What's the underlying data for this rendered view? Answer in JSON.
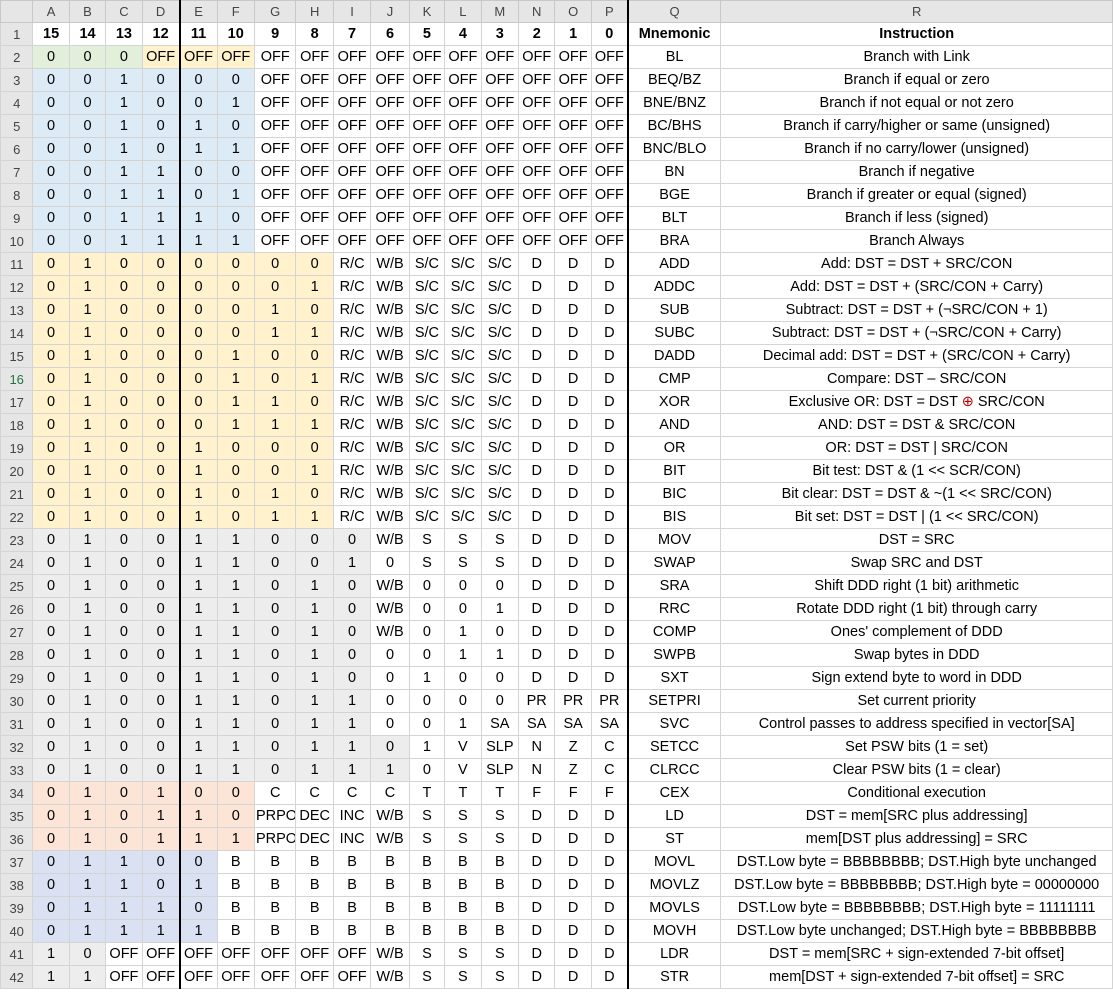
{
  "columns": [
    "A",
    "B",
    "C",
    "D",
    "E",
    "F",
    "G",
    "H",
    "I",
    "J",
    "K",
    "L",
    "M",
    "N",
    "O",
    "P",
    "Q",
    "R"
  ],
  "rows": [
    {
      "n": "1",
      "cells": [
        "15",
        "14",
        "13",
        "12",
        "11",
        "10",
        "9",
        "8",
        "7",
        "6",
        "5",
        "4",
        "3",
        "2",
        "1",
        "0",
        "Mnemonic",
        "Instruction"
      ]
    },
    {
      "n": "2",
      "cells": [
        "0",
        "0",
        "0",
        "OFF",
        "OFF",
        "OFF",
        "OFF",
        "OFF",
        "OFF",
        "OFF",
        "OFF",
        "OFF",
        "OFF",
        "OFF",
        "OFF",
        "OFF",
        "BL",
        "Branch with Link"
      ]
    },
    {
      "n": "3",
      "cells": [
        "0",
        "0",
        "1",
        "0",
        "0",
        "0",
        "OFF",
        "OFF",
        "OFF",
        "OFF",
        "OFF",
        "OFF",
        "OFF",
        "OFF",
        "OFF",
        "OFF",
        "BEQ/BZ",
        "Branch if equal or zero"
      ]
    },
    {
      "n": "4",
      "cells": [
        "0",
        "0",
        "1",
        "0",
        "0",
        "1",
        "OFF",
        "OFF",
        "OFF",
        "OFF",
        "OFF",
        "OFF",
        "OFF",
        "OFF",
        "OFF",
        "OFF",
        "BNE/BNZ",
        "Branch if not equal or not zero"
      ]
    },
    {
      "n": "5",
      "cells": [
        "0",
        "0",
        "1",
        "0",
        "1",
        "0",
        "OFF",
        "OFF",
        "OFF",
        "OFF",
        "OFF",
        "OFF",
        "OFF",
        "OFF",
        "OFF",
        "OFF",
        "BC/BHS",
        "Branch if carry/higher or same (unsigned)"
      ]
    },
    {
      "n": "6",
      "cells": [
        "0",
        "0",
        "1",
        "0",
        "1",
        "1",
        "OFF",
        "OFF",
        "OFF",
        "OFF",
        "OFF",
        "OFF",
        "OFF",
        "OFF",
        "OFF",
        "OFF",
        "BNC/BLO",
        "Branch if no carry/lower (unsigned)"
      ]
    },
    {
      "n": "7",
      "cells": [
        "0",
        "0",
        "1",
        "1",
        "0",
        "0",
        "OFF",
        "OFF",
        "OFF",
        "OFF",
        "OFF",
        "OFF",
        "OFF",
        "OFF",
        "OFF",
        "OFF",
        "BN",
        "Branch if negative"
      ]
    },
    {
      "n": "8",
      "cells": [
        "0",
        "0",
        "1",
        "1",
        "0",
        "1",
        "OFF",
        "OFF",
        "OFF",
        "OFF",
        "OFF",
        "OFF",
        "OFF",
        "OFF",
        "OFF",
        "OFF",
        "BGE",
        "Branch if greater or equal (signed)"
      ]
    },
    {
      "n": "9",
      "cells": [
        "0",
        "0",
        "1",
        "1",
        "1",
        "0",
        "OFF",
        "OFF",
        "OFF",
        "OFF",
        "OFF",
        "OFF",
        "OFF",
        "OFF",
        "OFF",
        "OFF",
        "BLT",
        "Branch if less (signed)"
      ]
    },
    {
      "n": "10",
      "cells": [
        "0",
        "0",
        "1",
        "1",
        "1",
        "1",
        "OFF",
        "OFF",
        "OFF",
        "OFF",
        "OFF",
        "OFF",
        "OFF",
        "OFF",
        "OFF",
        "OFF",
        "BRA",
        "Branch Always"
      ]
    },
    {
      "n": "11",
      "cells": [
        "0",
        "1",
        "0",
        "0",
        "0",
        "0",
        "0",
        "0",
        "R/C",
        "W/B",
        "S/C",
        "S/C",
        "S/C",
        "D",
        "D",
        "D",
        "ADD",
        "Add: DST = DST + SRC/CON"
      ]
    },
    {
      "n": "12",
      "cells": [
        "0",
        "1",
        "0",
        "0",
        "0",
        "0",
        "0",
        "1",
        "R/C",
        "W/B",
        "S/C",
        "S/C",
        "S/C",
        "D",
        "D",
        "D",
        "ADDC",
        "Add: DST = DST + (SRC/CON + Carry)"
      ]
    },
    {
      "n": "13",
      "cells": [
        "0",
        "1",
        "0",
        "0",
        "0",
        "0",
        "1",
        "0",
        "R/C",
        "W/B",
        "S/C",
        "S/C",
        "S/C",
        "D",
        "D",
        "D",
        "SUB",
        "Subtract: DST  = DST + (¬SRC/CON + 1)"
      ]
    },
    {
      "n": "14",
      "cells": [
        "0",
        "1",
        "0",
        "0",
        "0",
        "0",
        "1",
        "1",
        "R/C",
        "W/B",
        "S/C",
        "S/C",
        "S/C",
        "D",
        "D",
        "D",
        "SUBC",
        "Subtract: DST  = DST + (¬SRC/CON + Carry)"
      ]
    },
    {
      "n": "15",
      "cells": [
        "0",
        "1",
        "0",
        "0",
        "0",
        "1",
        "0",
        "0",
        "R/C",
        "W/B",
        "S/C",
        "S/C",
        "S/C",
        "D",
        "D",
        "D",
        "DADD",
        "Decimal add: DST = DST + (SRC/CON + Carry)"
      ]
    },
    {
      "n": "16",
      "cells": [
        "0",
        "1",
        "0",
        "0",
        "0",
        "1",
        "0",
        "1",
        "R/C",
        "W/B",
        "S/C",
        "S/C",
        "S/C",
        "D",
        "D",
        "D",
        "CMP",
        "Compare: DST – SRC/CON"
      ]
    },
    {
      "n": "17",
      "cells": [
        "0",
        "1",
        "0",
        "0",
        "0",
        "1",
        "1",
        "0",
        "R/C",
        "W/B",
        "S/C",
        "S/C",
        "S/C",
        "D",
        "D",
        "D",
        "XOR",
        "Exclusive OR: DST = DST ⊕ SRC/CON"
      ]
    },
    {
      "n": "18",
      "cells": [
        "0",
        "1",
        "0",
        "0",
        "0",
        "1",
        "1",
        "1",
        "R/C",
        "W/B",
        "S/C",
        "S/C",
        "S/C",
        "D",
        "D",
        "D",
        "AND",
        "AND:  DST = DST & SRC/CON"
      ]
    },
    {
      "n": "19",
      "cells": [
        "0",
        "1",
        "0",
        "0",
        "1",
        "0",
        "0",
        "0",
        "R/C",
        "W/B",
        "S/C",
        "S/C",
        "S/C",
        "D",
        "D",
        "D",
        "OR",
        "OR:  DST = DST | SRC/CON"
      ]
    },
    {
      "n": "20",
      "cells": [
        "0",
        "1",
        "0",
        "0",
        "1",
        "0",
        "0",
        "1",
        "R/C",
        "W/B",
        "S/C",
        "S/C",
        "S/C",
        "D",
        "D",
        "D",
        "BIT",
        "Bit test: DST & (1 << SCR/CON)"
      ]
    },
    {
      "n": "21",
      "cells": [
        "0",
        "1",
        "0",
        "0",
        "1",
        "0",
        "1",
        "0",
        "R/C",
        "W/B",
        "S/C",
        "S/C",
        "S/C",
        "D",
        "D",
        "D",
        "BIC",
        "Bit clear: DST = DST & ~(1 << SRC/CON)"
      ]
    },
    {
      "n": "22",
      "cells": [
        "0",
        "1",
        "0",
        "0",
        "1",
        "0",
        "1",
        "1",
        "R/C",
        "W/B",
        "S/C",
        "S/C",
        "S/C",
        "D",
        "D",
        "D",
        "BIS",
        "Bit set: DST = DST | (1 << SRC/CON)"
      ]
    },
    {
      "n": "23",
      "cells": [
        "0",
        "1",
        "0",
        "0",
        "1",
        "1",
        "0",
        "0",
        "0",
        "W/B",
        "S",
        "S",
        "S",
        "D",
        "D",
        "D",
        "MOV",
        "DST = SRC"
      ]
    },
    {
      "n": "24",
      "cells": [
        "0",
        "1",
        "0",
        "0",
        "1",
        "1",
        "0",
        "0",
        "1",
        "0",
        "S",
        "S",
        "S",
        "D",
        "D",
        "D",
        "SWAP",
        "Swap SRC and DST"
      ]
    },
    {
      "n": "25",
      "cells": [
        "0",
        "1",
        "0",
        "0",
        "1",
        "1",
        "0",
        "1",
        "0",
        "W/B",
        "0",
        "0",
        "0",
        "D",
        "D",
        "D",
        "SRA",
        "Shift DDD right (1 bit) arithmetic"
      ]
    },
    {
      "n": "26",
      "cells": [
        "0",
        "1",
        "0",
        "0",
        "1",
        "1",
        "0",
        "1",
        "0",
        "W/B",
        "0",
        "0",
        "1",
        "D",
        "D",
        "D",
        "RRC",
        "Rotate DDD right (1 bit) through carry"
      ]
    },
    {
      "n": "27",
      "cells": [
        "0",
        "1",
        "0",
        "0",
        "1",
        "1",
        "0",
        "1",
        "0",
        "W/B",
        "0",
        "1",
        "0",
        "D",
        "D",
        "D",
        "COMP",
        "Ones' complement of DDD"
      ]
    },
    {
      "n": "28",
      "cells": [
        "0",
        "1",
        "0",
        "0",
        "1",
        "1",
        "0",
        "1",
        "0",
        "0",
        "0",
        "1",
        "1",
        "D",
        "D",
        "D",
        "SWPB",
        "Swap bytes in DDD"
      ]
    },
    {
      "n": "29",
      "cells": [
        "0",
        "1",
        "0",
        "0",
        "1",
        "1",
        "0",
        "1",
        "0",
        "0",
        "1",
        "0",
        "0",
        "D",
        "D",
        "D",
        "SXT",
        "Sign extend byte to word in DDD"
      ]
    },
    {
      "n": "30",
      "cells": [
        "0",
        "1",
        "0",
        "0",
        "1",
        "1",
        "0",
        "1",
        "1",
        "0",
        "0",
        "0",
        "0",
        "PR",
        "PR",
        "PR",
        "SETPRI",
        "Set current priority"
      ]
    },
    {
      "n": "31",
      "cells": [
        "0",
        "1",
        "0",
        "0",
        "1",
        "1",
        "0",
        "1",
        "1",
        "0",
        "0",
        "1",
        "SA",
        "SA",
        "SA",
        "SA",
        "SVC",
        "Control passes to address specified in vector[SA]"
      ]
    },
    {
      "n": "32",
      "cells": [
        "0",
        "1",
        "0",
        "0",
        "1",
        "1",
        "0",
        "1",
        "1",
        "0",
        "1",
        "V",
        "SLP",
        "N",
        "Z",
        "C",
        "SETCC",
        "Set PSW bits (1 = set)"
      ]
    },
    {
      "n": "33",
      "cells": [
        "0",
        "1",
        "0",
        "0",
        "1",
        "1",
        "0",
        "1",
        "1",
        "1",
        "0",
        "V",
        "SLP",
        "N",
        "Z",
        "C",
        "CLRCC",
        "Clear PSW bits (1 = clear)"
      ]
    },
    {
      "n": "34",
      "cells": [
        "0",
        "1",
        "0",
        "1",
        "0",
        "0",
        "C",
        "C",
        "C",
        "C",
        "T",
        "T",
        "T",
        "F",
        "F",
        "F",
        "CEX",
        "Conditional execution"
      ]
    },
    {
      "n": "35",
      "cells": [
        "0",
        "1",
        "0",
        "1",
        "1",
        "0",
        "PRPO",
        "DEC",
        "INC",
        "W/B",
        "S",
        "S",
        "S",
        "D",
        "D",
        "D",
        "LD",
        "DST = mem[SRC plus addressing]"
      ]
    },
    {
      "n": "36",
      "cells": [
        "0",
        "1",
        "0",
        "1",
        "1",
        "1",
        "PRPO",
        "DEC",
        "INC",
        "W/B",
        "S",
        "S",
        "S",
        "D",
        "D",
        "D",
        "ST",
        "mem[DST plus addressing] = SRC"
      ]
    },
    {
      "n": "37",
      "cells": [
        "0",
        "1",
        "1",
        "0",
        "0",
        "B",
        "B",
        "B",
        "B",
        "B",
        "B",
        "B",
        "B",
        "D",
        "D",
        "D",
        "MOVL",
        "DST.Low byte = BBBBBBBB; DST.High byte unchanged"
      ]
    },
    {
      "n": "38",
      "cells": [
        "0",
        "1",
        "1",
        "0",
        "1",
        "B",
        "B",
        "B",
        "B",
        "B",
        "B",
        "B",
        "B",
        "D",
        "D",
        "D",
        "MOVLZ",
        "DST.Low byte = BBBBBBBB; DST.High byte = 00000000"
      ]
    },
    {
      "n": "39",
      "cells": [
        "0",
        "1",
        "1",
        "1",
        "0",
        "B",
        "B",
        "B",
        "B",
        "B",
        "B",
        "B",
        "B",
        "D",
        "D",
        "D",
        "MOVLS",
        "DST.Low byte = BBBBBBBB; DST.High byte = 11111111"
      ]
    },
    {
      "n": "40",
      "cells": [
        "0",
        "1",
        "1",
        "1",
        "1",
        "B",
        "B",
        "B",
        "B",
        "B",
        "B",
        "B",
        "B",
        "D",
        "D",
        "D",
        "MOVH",
        "DST.Low byte unchanged; DST.High byte = BBBBBBBB"
      ]
    },
    {
      "n": "41",
      "cells": [
        "1",
        "0",
        "OFF",
        "OFF",
        "OFF",
        "OFF",
        "OFF",
        "OFF",
        "OFF",
        "W/B",
        "S",
        "S",
        "S",
        "D",
        "D",
        "D",
        "LDR",
        "DST = mem[SRC + sign-extended 7-bit offset]"
      ]
    },
    {
      "n": "42",
      "cells": [
        "1",
        "1",
        "OFF",
        "OFF",
        "OFF",
        "OFF",
        "OFF",
        "OFF",
        "OFF",
        "W/B",
        "S",
        "S",
        "S",
        "D",
        "D",
        "D",
        "STR",
        "mem[DST + sign-extended 7-bit offset] = SRC"
      ]
    }
  ],
  "colors": {
    "green": "#e2efda",
    "blue": "#ddebf7",
    "yellow": "#fff2cc",
    "peach": "#fce4d6",
    "lavender": "#d9e1f2",
    "gray": "#ededed",
    "header": "#e6e6e6",
    "xor_symbol": "#c00000"
  }
}
